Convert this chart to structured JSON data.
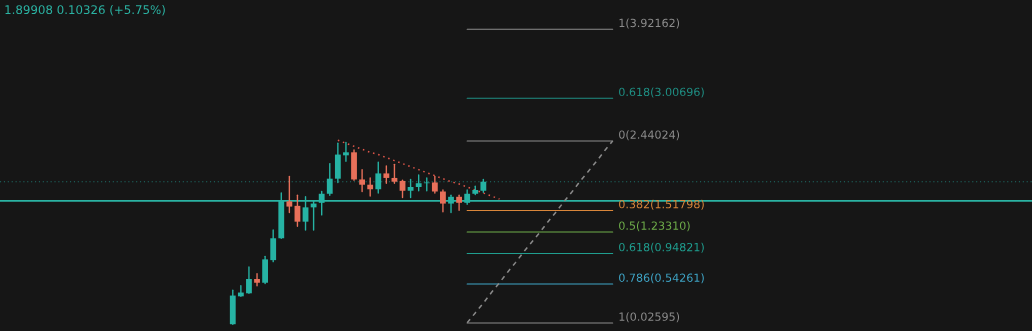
{
  "chart_data": {
    "type": "candlestick",
    "categories": [
      null,
      null,
      null,
      null,
      null,
      null,
      null,
      null,
      null,
      null,
      null,
      null,
      null,
      null,
      null,
      null,
      null,
      null,
      null,
      null,
      null,
      null,
      null,
      null,
      null,
      null,
      null,
      null,
      null,
      null,
      null,
      null,
      null,
      null,
      null,
      null,
      null,
      null,
      null,
      null,
      null,
      null,
      null,
      null,
      null,
      null,
      null,
      null
    ],
    "ohlc": [
      [
        0.01,
        0.46,
        0.01,
        0.39
      ],
      [
        0.38,
        0.52,
        0.38,
        0.43
      ],
      [
        0.42,
        0.77,
        0.42,
        0.61
      ],
      [
        0.61,
        0.68,
        0.52,
        0.56
      ],
      [
        0.56,
        0.91,
        0.55,
        0.87
      ],
      [
        0.86,
        1.26,
        0.84,
        1.15
      ],
      [
        1.15,
        1.75,
        1.15,
        1.65
      ],
      [
        1.64,
        1.97,
        1.49,
        1.57
      ],
      [
        1.58,
        1.72,
        1.31,
        1.37
      ],
      [
        1.37,
        1.7,
        1.26,
        1.56
      ],
      [
        1.56,
        1.64,
        1.26,
        1.61
      ],
      [
        1.62,
        1.77,
        1.46,
        1.74
      ],
      [
        1.74,
        2.14,
        1.72,
        1.94
      ],
      [
        1.94,
        2.41,
        1.89,
        2.26
      ],
      [
        2.25,
        2.42,
        2.17,
        2.29
      ],
      [
        2.29,
        2.32,
        1.92,
        1.93
      ],
      [
        1.93,
        2.06,
        1.77,
        1.86
      ],
      [
        1.86,
        1.95,
        1.71,
        1.8
      ],
      [
        1.8,
        2.16,
        1.75,
        2.01
      ],
      [
        2.01,
        2.11,
        1.88,
        1.95
      ],
      [
        1.95,
        2.13,
        1.88,
        1.9
      ],
      [
        1.91,
        1.92,
        1.69,
        1.78
      ],
      [
        1.78,
        1.93,
        1.69,
        1.83
      ],
      [
        1.83,
        1.99,
        1.78,
        1.88
      ],
      [
        1.88,
        1.95,
        1.78,
        1.89
      ],
      [
        1.89,
        1.97,
        1.75,
        1.77
      ],
      [
        1.77,
        1.79,
        1.5,
        1.61
      ],
      [
        1.61,
        1.72,
        1.49,
        1.7
      ],
      [
        1.7,
        1.72,
        1.52,
        1.62
      ],
      [
        1.62,
        1.79,
        1.6,
        1.74
      ],
      [
        1.74,
        1.84,
        1.73,
        1.79
      ],
      [
        1.78,
        1.93,
        1.76,
        1.9
      ],
      null,
      null,
      null,
      null,
      null,
      null,
      null,
      null,
      null,
      null,
      null,
      null,
      null,
      null,
      null,
      null
    ],
    "series": [
      {
        "type": "line",
        "color": "#e0574a",
        "line_style": "dotted",
        "values": [
          null,
          null,
          null,
          null,
          null,
          null,
          null,
          null,
          null,
          null,
          null,
          null,
          null,
          2.45,
          2.41,
          2.37,
          2.33,
          2.29,
          2.26,
          2.22,
          2.18,
          2.14,
          2.1,
          2.06,
          2.02,
          1.98,
          1.94,
          1.9,
          1.87,
          1.83,
          1.79,
          1.75,
          1.71,
          1.67,
          null,
          null,
          null,
          null,
          null,
          null,
          null,
          null,
          null,
          null,
          null,
          null,
          null,
          null
        ]
      },
      {
        "type": "line",
        "color": "#8a8a8a",
        "line_style": "dashed",
        "values": [
          null,
          null,
          null,
          null,
          null,
          null,
          null,
          null,
          null,
          null,
          null,
          null,
          null,
          null,
          null,
          null,
          null,
          null,
          null,
          null,
          null,
          null,
          null,
          null,
          null,
          null,
          null,
          null,
          null,
          0.03,
          0.16,
          0.29,
          0.43,
          0.56,
          0.7,
          0.83,
          0.97,
          1.1,
          1.23,
          1.37,
          1.5,
          1.64,
          1.77,
          1.91,
          2.04,
          2.17,
          2.31,
          2.44
        ]
      }
    ],
    "ref_lines": [
      {
        "axis": "y",
        "value": 3.92162,
        "label": "1(3.92162)",
        "color": "#8c8c8c"
      },
      {
        "axis": "y",
        "value": 3.00696,
        "label": "0.618(3.00696)",
        "color": "#1f8f84"
      },
      {
        "axis": "y",
        "value": 2.44024,
        "label": "0(2.44024)",
        "color": "#8c8c8c"
      },
      {
        "axis": "y",
        "value": 1.51798,
        "label": "0.382(1.51798)",
        "color": "#d9863a"
      },
      {
        "axis": "y",
        "value": 1.2331,
        "label": "0.5(1.23310)",
        "color": "#6fae4a"
      },
      {
        "axis": "y",
        "value": 0.94821,
        "label": "0.618(0.94821)",
        "color": "#1f9e8f"
      },
      {
        "axis": "y",
        "value": 0.54261,
        "label": "0.786(0.54261)",
        "color": "#3fa6c8"
      },
      {
        "axis": "y",
        "value": 0.02595,
        "label": "1(0.02595)",
        "color": "#8c8c8c"
      },
      {
        "axis": "y",
        "value": 1.645,
        "color": "#2bb3a3"
      },
      {
        "axis": "y",
        "value": 1.89908,
        "color": "#1f6f68",
        "line_style": "dotted"
      }
    ],
    "annotations": [
      "1.89908 0.10326 (+5.75%)"
    ],
    "ylim": [
      -0.08,
      4.31
    ],
    "tick_labels": false
  }
}
